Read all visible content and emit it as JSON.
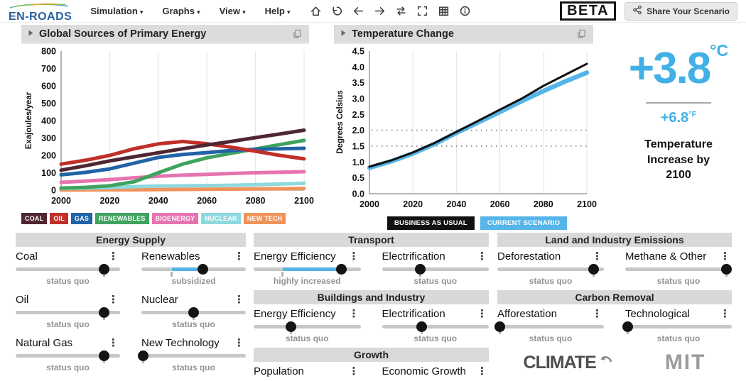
{
  "navbar": {
    "logo": "EN-ROADS",
    "menus": [
      "Simulation",
      "Graphs",
      "View",
      "Help"
    ],
    "icons": [
      "home",
      "undo",
      "back",
      "forward",
      "repeat",
      "fullscreen",
      "table",
      "info"
    ],
    "beta_label": "BETA",
    "share_button": "Share Your Scenario"
  },
  "chart_data": [
    {
      "type": "line",
      "title": "Global Sources of Primary Energy",
      "ylabel": "Exajoules/year",
      "xlim": [
        2000,
        2100
      ],
      "ylim": [
        0,
        800
      ],
      "xticks": [
        2000,
        2020,
        2040,
        2060,
        2080,
        2100
      ],
      "yticks": [
        "0",
        "100",
        "200",
        "300",
        "400",
        "500",
        "600",
        "700",
        "800"
      ],
      "x": [
        2000,
        2010,
        2020,
        2030,
        2040,
        2050,
        2060,
        2070,
        2080,
        2090,
        2100
      ],
      "series": [
        {
          "name": "COAL",
          "color": "#4f2731",
          "lw": 5,
          "values": [
            115,
            140,
            168,
            192,
            215,
            238,
            260,
            280,
            302,
            323,
            345
          ]
        },
        {
          "name": "OIL",
          "color": "#c12f28",
          "lw": 5,
          "values": [
            150,
            172,
            200,
            238,
            266,
            280,
            267,
            247,
            224,
            200,
            180
          ]
        },
        {
          "name": "GAS",
          "color": "#2263a7",
          "lw": 5,
          "values": [
            88,
            102,
            122,
            155,
            188,
            205,
            216,
            228,
            235,
            238,
            241
          ]
        },
        {
          "name": "RENEWABLES",
          "color": "#3fa35e",
          "lw": 5,
          "values": [
            12,
            16,
            25,
            48,
            100,
            150,
            186,
            212,
            237,
            262,
            286
          ]
        },
        {
          "name": "BIOENERGY",
          "color": "#e673af",
          "lw": 5,
          "values": [
            45,
            52,
            61,
            71,
            80,
            86,
            91,
            96,
            100,
            103,
            106
          ]
        },
        {
          "name": "NUCLEAR",
          "color": "#8fd8de",
          "lw": 5,
          "values": [
            10,
            12,
            15,
            20,
            24,
            25,
            26,
            28,
            31,
            35,
            40
          ]
        },
        {
          "name": "NEW TECH",
          "color": "#f0935a",
          "lw": 5,
          "values": [
            1,
            1,
            2,
            2,
            3,
            4,
            5,
            6,
            7,
            8,
            9
          ]
        }
      ],
      "legend_position": "bottom",
      "grid": "vertical"
    },
    {
      "type": "line",
      "title": "Temperature Change",
      "ylabel": "Degrees Celsius",
      "xlim": [
        2000,
        2100
      ],
      "ylim": [
        0,
        4.5
      ],
      "xticks": [
        2000,
        2020,
        2040,
        2060,
        2080,
        2100
      ],
      "yticks": [
        "0.0",
        "0.5",
        "1.0",
        "1.5",
        "2.0",
        "2.5",
        "3.0",
        "3.5",
        "4.0",
        "4.5"
      ],
      "ref_lines": [
        1.5,
        2.0
      ],
      "x": [
        2000,
        2010,
        2020,
        2030,
        2040,
        2050,
        2060,
        2070,
        2080,
        2090,
        2100
      ],
      "series": [
        {
          "name": "BUSINESS AS USUAL",
          "color": "#111111",
          "lw": 3,
          "values": [
            0.85,
            1.05,
            1.3,
            1.6,
            1.95,
            2.3,
            2.65,
            3.0,
            3.4,
            3.75,
            4.1
          ]
        },
        {
          "name": "CURRENT SCENARIO",
          "color": "#55b5e8",
          "lw": 6.5,
          "values": [
            0.82,
            1.02,
            1.27,
            1.57,
            1.92,
            2.25,
            2.58,
            2.92,
            3.24,
            3.54,
            3.82
          ]
        }
      ],
      "legend_position": "bottom",
      "grid": "vertical"
    }
  ],
  "temperature_summary": {
    "celsius_value": "+3.8",
    "celsius_unit": "°C",
    "fahrenheit_value": "+6.8",
    "fahrenheit_unit": "°F",
    "caption": "Temperature Increase by 2100"
  },
  "controls": {
    "panels": [
      {
        "title": "Energy Supply",
        "sliders": [
          {
            "label": "Coal",
            "status": "status quo",
            "value": 0.85,
            "default": 0.85
          },
          {
            "label": "Renewables",
            "status": "subsidized",
            "value": 0.59,
            "default": 0.29,
            "fill": true
          },
          {
            "label": "Oil",
            "status": "status quo",
            "value": 0.85,
            "default": 0.85
          },
          {
            "label": "Nuclear",
            "status": "status quo",
            "value": 0.5,
            "default": 0.5
          },
          {
            "label": "Natural Gas",
            "status": "status quo",
            "value": 0.85,
            "default": 0.85
          },
          {
            "label": "New Technology",
            "status": "status quo",
            "value": 0.02,
            "default": 0.02
          }
        ]
      },
      {
        "title": "Transport",
        "sliders": [
          {
            "label": "Energy Efficiency",
            "status": "highly increased",
            "value": 0.82,
            "default": 0.27,
            "fill": true
          },
          {
            "label": "Electrification",
            "status": "status quo",
            "value": 0.36,
            "default": 0.36
          }
        ]
      },
      {
        "title": "Buildings and Industry",
        "sliders": [
          {
            "label": "Energy Efficiency",
            "status": "status quo",
            "value": 0.35,
            "default": 0.35
          },
          {
            "label": "Electrification",
            "status": "status quo",
            "value": 0.37,
            "default": 0.37
          }
        ]
      },
      {
        "title": "Growth",
        "sliders": [
          {
            "label": "Population"
          },
          {
            "label": "Economic Growth"
          }
        ]
      },
      {
        "title": "Land and Industry Emissions",
        "sliders": [
          {
            "label": "Deforestation",
            "status": "status quo",
            "value": 0.9,
            "default": 0.9
          },
          {
            "label": "Methane & Other",
            "status": "status quo",
            "value": 0.95,
            "default": 0.95
          }
        ]
      },
      {
        "title": "Carbon Removal",
        "sliders": [
          {
            "label": "Afforestation",
            "status": "status quo",
            "value": 0.02,
            "default": 0.02
          },
          {
            "label": "Technological",
            "status": "status quo",
            "value": 0.02,
            "default": 0.02
          }
        ]
      }
    ]
  },
  "footer": {
    "climate_logo": "CLIMATE",
    "mit_logo": "MIT"
  }
}
